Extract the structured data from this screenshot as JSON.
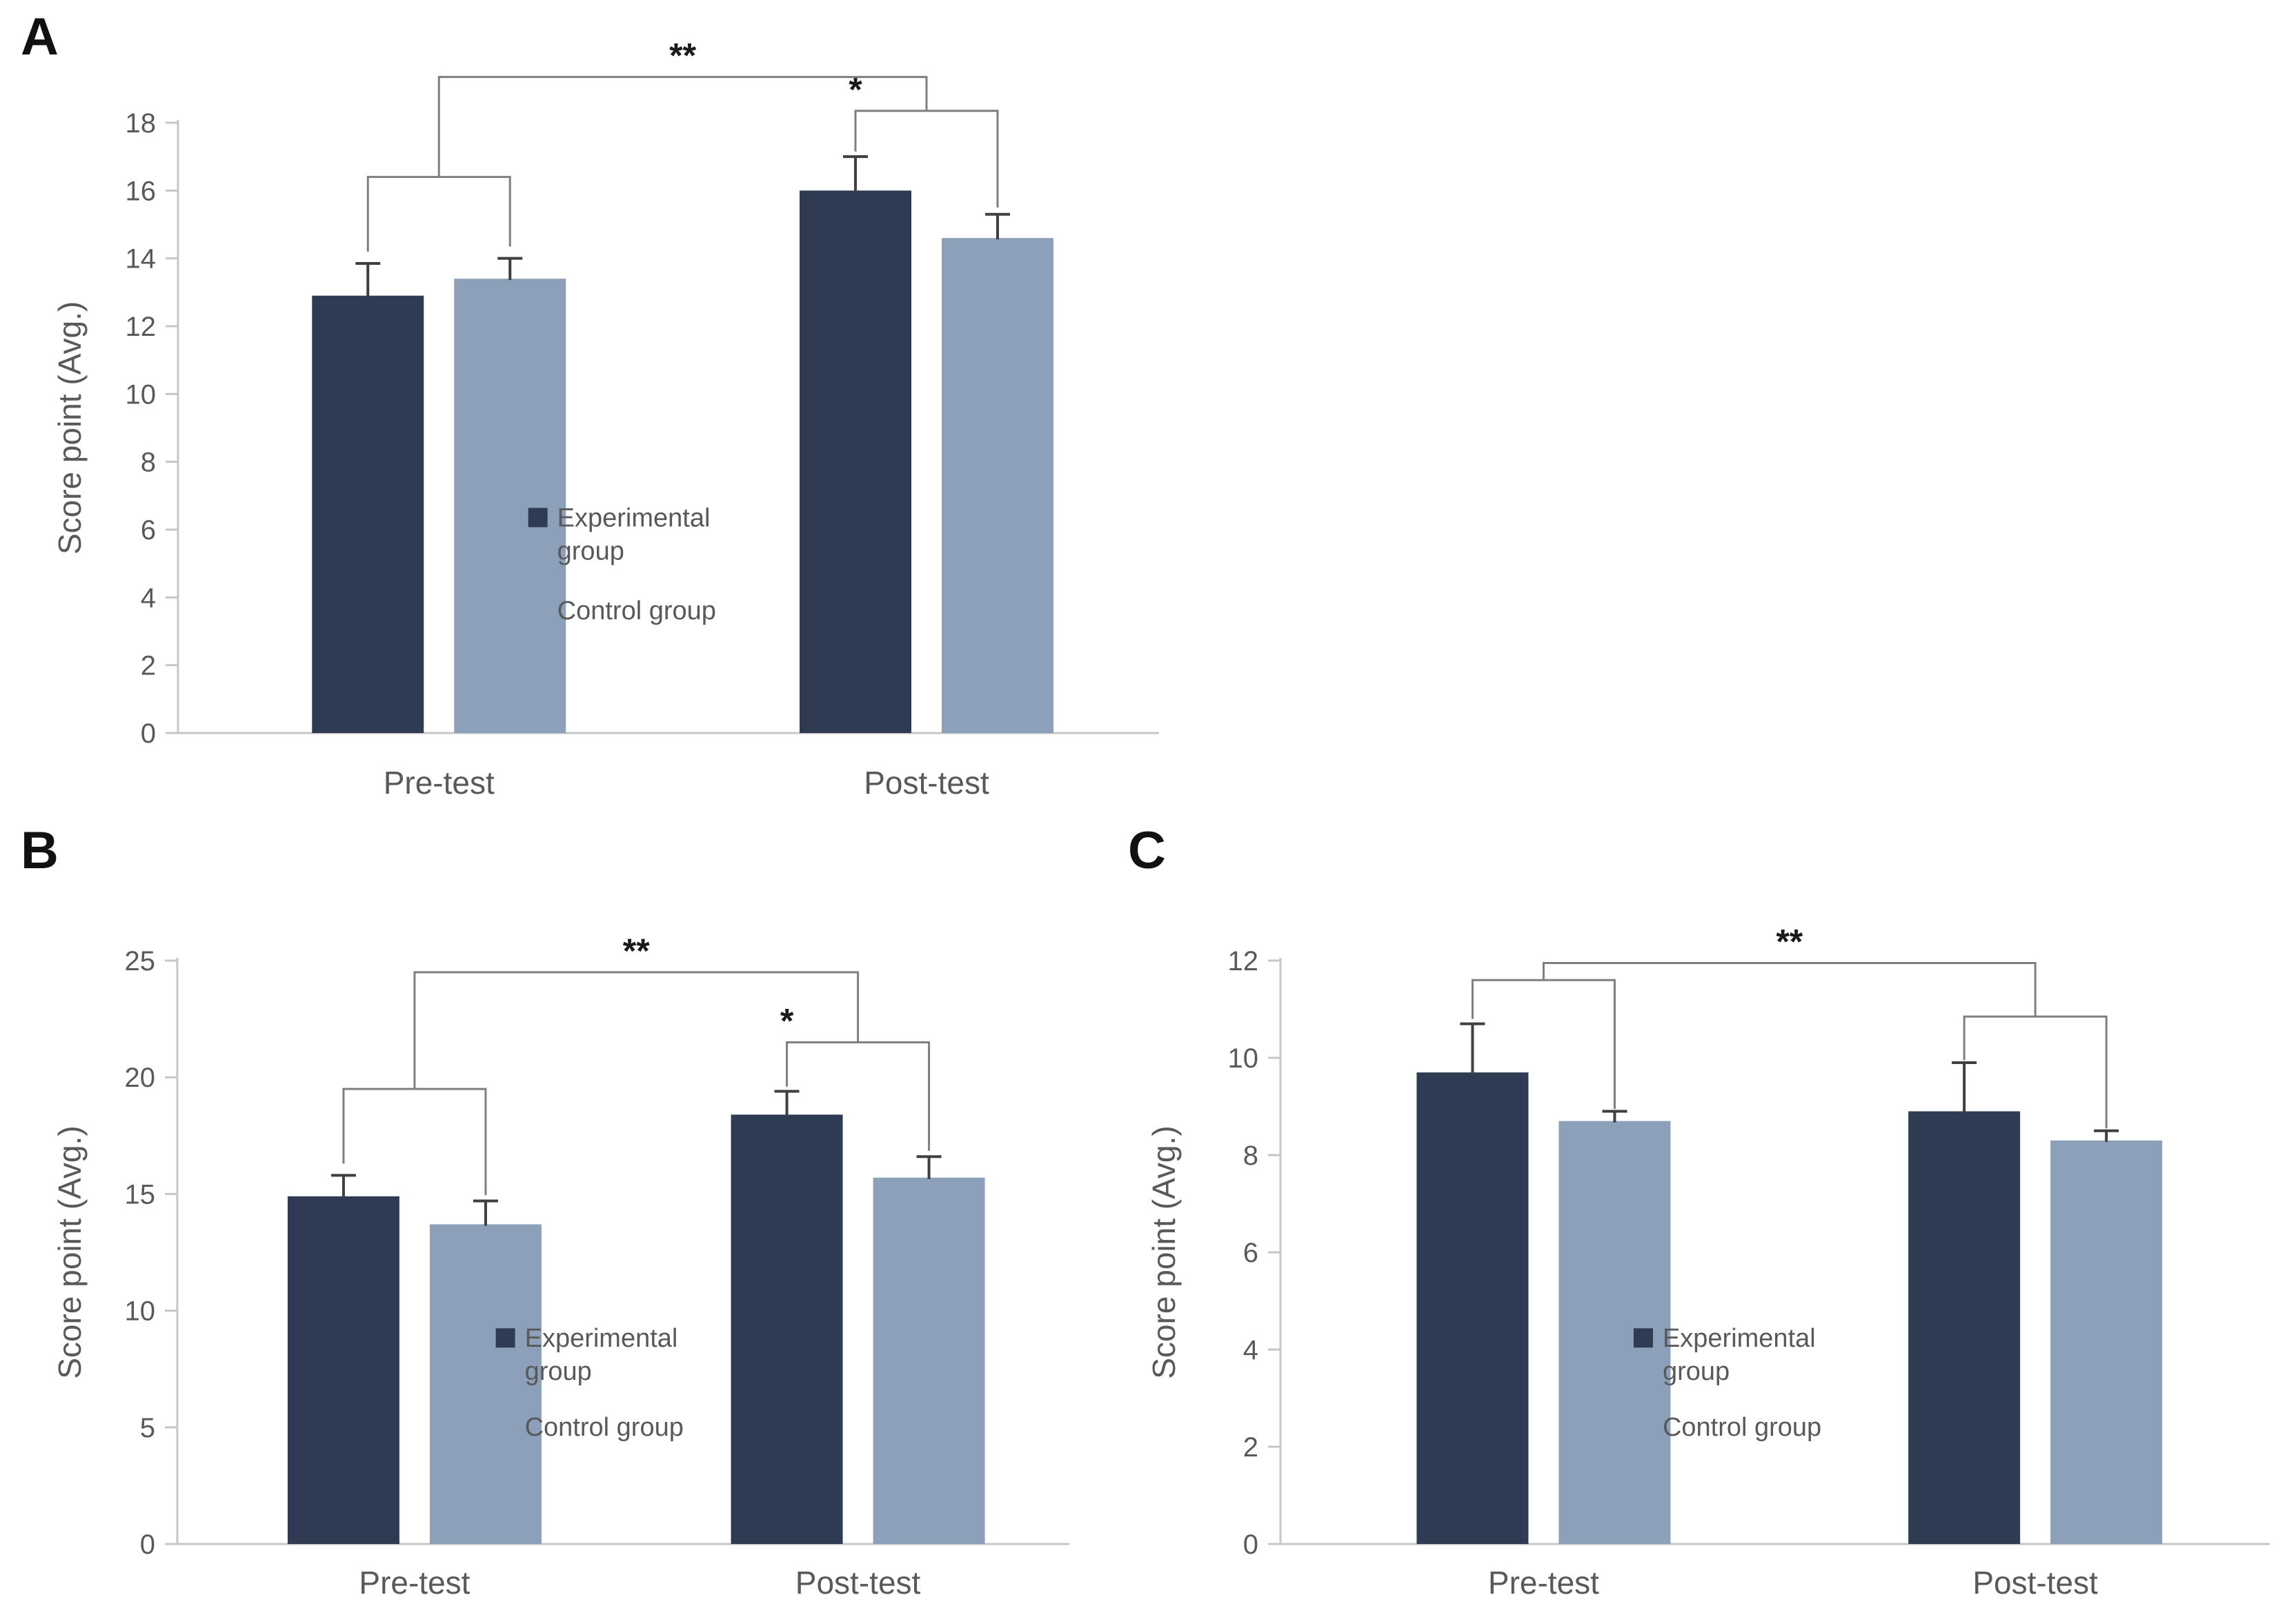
{
  "panels": [
    {
      "label": "A"
    },
    {
      "label": "B"
    },
    {
      "label": "C"
    }
  ],
  "shared": {
    "ylabel": "Score point (Avg.)",
    "legend": [
      {
        "lines": [
          "Experimental",
          "group"
        ],
        "color": "#2e3b52"
      },
      {
        "lines": [
          "Control group"
        ],
        "color": "#8da0ba"
      }
    ]
  },
  "colors": {
    "experimental": "#2e3b52",
    "control": "#8da0ba",
    "axis": "#c6c6c6",
    "error_bar": "#3f3f3f",
    "bracket": "#7f7f7f",
    "tick_text": "#595959",
    "star_text": "#1a1a1a"
  },
  "chart_data": [
    {
      "type": "bar",
      "title": "",
      "xlabel": "",
      "ylabel": "Score point (Avg.)",
      "ylim": [
        0,
        18
      ],
      "ytick_step": 2,
      "grid": false,
      "legend_position": "center-inside",
      "categories": [
        "Pre-test",
        "Post-test"
      ],
      "series": [
        {
          "name": "Experimental group",
          "color": "#2e3b52",
          "values": [
            12.9,
            16.0
          ],
          "errors": [
            0.95,
            1.0
          ]
        },
        {
          "name": "Control group",
          "color": "#8da0ba",
          "values": [
            13.4,
            14.6
          ],
          "errors": [
            0.6,
            0.7
          ]
        }
      ],
      "significance": [
        {
          "kind": "pair",
          "category": 0,
          "y": 16.4,
          "left_end": 14.2,
          "right_end": 14.35,
          "label": ""
        },
        {
          "kind": "pair",
          "category": 1,
          "y": 18.35,
          "left_end": 17.15,
          "right_end": 15.5,
          "label": "*"
        },
        {
          "kind": "main",
          "y": 19.35,
          "left_end": 16.4,
          "right_end": 18.35,
          "label": "**"
        }
      ]
    },
    {
      "type": "bar",
      "title": "",
      "xlabel": "",
      "ylabel": "Score point (Avg.)",
      "ylim": [
        0,
        25
      ],
      "ytick_step": 5,
      "grid": false,
      "legend_position": "center-inside",
      "categories": [
        "Pre-test",
        "Post-test"
      ],
      "series": [
        {
          "name": "Experimental group",
          "color": "#2e3b52",
          "values": [
            14.9,
            18.4
          ],
          "errors": [
            0.9,
            1.0
          ]
        },
        {
          "name": "Control group",
          "color": "#8da0ba",
          "values": [
            13.7,
            15.7
          ],
          "errors": [
            1.0,
            0.9
          ]
        }
      ],
      "significance": [
        {
          "kind": "pair",
          "category": 0,
          "y": 19.5,
          "left_end": 16.3,
          "right_end": 14.95,
          "label": ""
        },
        {
          "kind": "pair",
          "category": 1,
          "y": 21.5,
          "left_end": 19.6,
          "right_end": 16.85,
          "label": "*"
        },
        {
          "kind": "main",
          "y": 24.5,
          "left_end": 19.5,
          "right_end": 21.5,
          "label": "**"
        }
      ]
    },
    {
      "type": "bar",
      "title": "",
      "xlabel": "",
      "ylabel": "Score point (Avg.)",
      "ylim": [
        0,
        12
      ],
      "ytick_step": 2,
      "grid": false,
      "legend_position": "center-inside",
      "categories": [
        "Pre-test",
        "Post-test"
      ],
      "series": [
        {
          "name": "Experimental group",
          "color": "#2e3b52",
          "values": [
            9.7,
            8.9
          ],
          "errors": [
            1.0,
            1.0
          ]
        },
        {
          "name": "Control group",
          "color": "#8da0ba",
          "values": [
            8.7,
            8.3
          ],
          "errors": [
            0.2,
            0.2
          ]
        }
      ],
      "significance": [
        {
          "kind": "pair",
          "category": 0,
          "y": 11.6,
          "left_end": 10.8,
          "right_end": 8.95,
          "label": ""
        },
        {
          "kind": "pair",
          "category": 1,
          "y": 10.85,
          "left_end": 9.95,
          "right_end": 8.55,
          "label": ""
        },
        {
          "kind": "main",
          "y": 11.95,
          "left_end": 11.6,
          "right_end": 10.85,
          "label": "**"
        }
      ]
    }
  ]
}
